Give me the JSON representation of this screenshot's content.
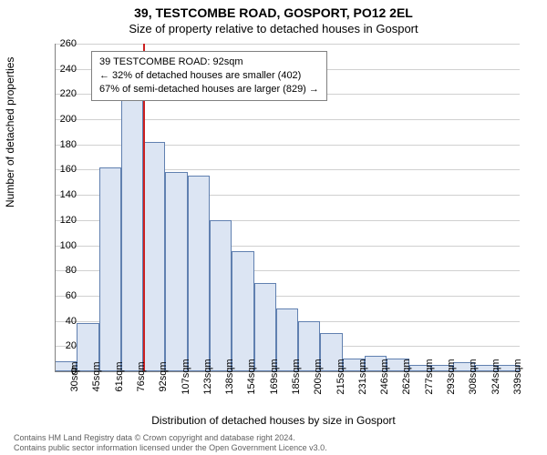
{
  "title": "39, TESTCOMBE ROAD, GOSPORT, PO12 2EL",
  "subtitle": "Size of property relative to detached houses in Gosport",
  "y_axis_label": "Number of detached properties",
  "x_axis_label": "Distribution of detached houses by size in Gosport",
  "footer_line1": "Contains HM Land Registry data © Crown copyright and database right 2024.",
  "footer_line2": "Contains public sector information licensed under the Open Government Licence v3.0.",
  "annotation": {
    "line1": "39 TESTCOMBE ROAD: 92sqm",
    "line2": "← 32% of detached houses are smaller (402)",
    "line3": "67% of semi-detached houses are larger (829) →"
  },
  "chart": {
    "type": "histogram",
    "ylim": [
      0,
      260
    ],
    "ytick_step": 20,
    "yticks": [
      0,
      20,
      40,
      60,
      80,
      100,
      120,
      140,
      160,
      180,
      200,
      220,
      240,
      260
    ],
    "categories": [
      "30sqm",
      "45sqm",
      "61sqm",
      "76sqm",
      "92sqm",
      "107sqm",
      "123sqm",
      "138sqm",
      "154sqm",
      "169sqm",
      "185sqm",
      "200sqm",
      "215sqm",
      "231sqm",
      "246sqm",
      "262sqm",
      "277sqm",
      "293sqm",
      "308sqm",
      "324sqm",
      "339sqm"
    ],
    "values": [
      8,
      38,
      162,
      218,
      182,
      158,
      155,
      120,
      95,
      70,
      50,
      40,
      30,
      10,
      12,
      10,
      5,
      5,
      7,
      5,
      5
    ],
    "bar_fill": "#dce5f3",
    "bar_border": "#6080b0",
    "background": "#ffffff",
    "grid_color": "#d0d0d0",
    "marker_color": "#cc2020",
    "marker_category_index": 4,
    "axis_color": "#808080",
    "tick_fontsize": 11,
    "label_fontsize": 12,
    "title_fontsize": 14
  }
}
